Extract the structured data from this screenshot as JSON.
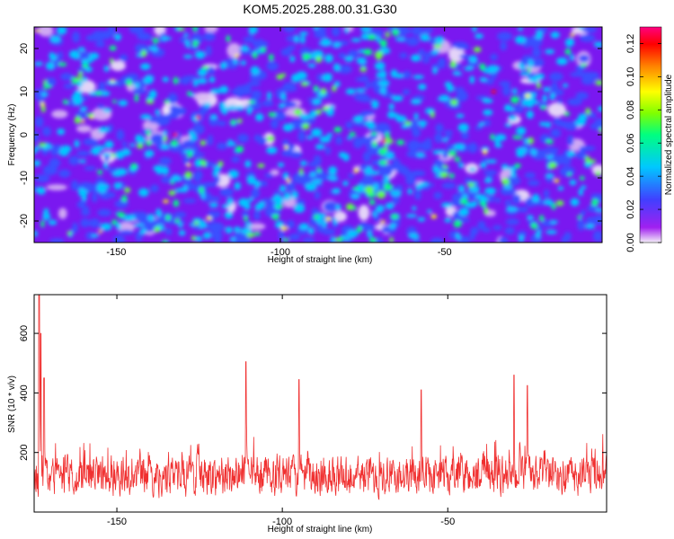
{
  "chart_data": [
    {
      "type": "heatmap",
      "title": "KOM5.2025.288.00.31.G30",
      "xlabel": "Height of straight line (km)",
      "ylabel": "Frequency (Hz)",
      "xlim": [
        -175,
        -2
      ],
      "ylim": [
        -25,
        25
      ],
      "xticks": [
        -150,
        -100,
        -50
      ],
      "yticks": [
        -20,
        -10,
        0,
        10,
        20
      ],
      "colorbar": {
        "label": "Normalized spectral amplitude",
        "range": [
          0,
          0.13
        ],
        "ticks": [
          "0.00",
          "0.02",
          "0.04",
          "0.06",
          "0.08",
          "0.10",
          "0.12"
        ],
        "colors": [
          "#f4f0f8",
          "#a020f0",
          "#4040ff",
          "#00c8ff",
          "#00ff80",
          "#80ff00",
          "#ffff00",
          "#ff8000",
          "#ff0000",
          "#ff0080"
        ]
      }
    },
    {
      "type": "line",
      "xlabel": "Height of straight line (km)",
      "ylabel": "SNR (10 * v/v)",
      "xlim": [
        -175,
        -2
      ],
      "ylim": [
        0,
        730
      ],
      "xticks": [
        -150,
        -100,
        -50
      ],
      "yticks": [
        200,
        400,
        600
      ],
      "color": "#f03030",
      "baseline": 120,
      "peaks": [
        {
          "x": -173.5,
          "y": 730
        },
        {
          "x": -173,
          "y": 600
        },
        {
          "x": -172,
          "y": 450
        },
        {
          "x": -111,
          "y": 505
        },
        {
          "x": -95,
          "y": 445
        },
        {
          "x": -58,
          "y": 410
        },
        {
          "x": -30,
          "y": 460
        },
        {
          "x": -26,
          "y": 425
        }
      ]
    }
  ]
}
